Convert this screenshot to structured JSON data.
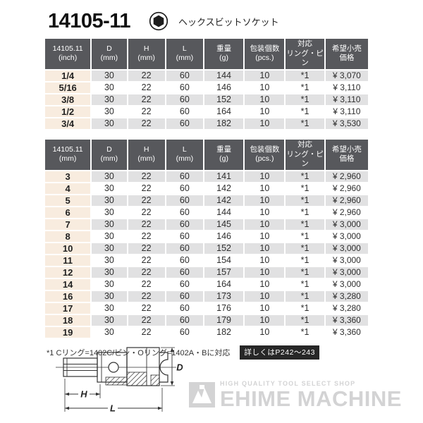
{
  "title": {
    "model": "14105-11",
    "product_name": "ヘックスビットソケット",
    "icon": "hex-socket-icon"
  },
  "tables": [
    {
      "unit": "inch",
      "columns": [
        {
          "l1": "14105.11",
          "l2": "(inch)"
        },
        {
          "l1": "D",
          "l2": "(mm)"
        },
        {
          "l1": "H",
          "l2": "(mm)"
        },
        {
          "l1": "L",
          "l2": "(mm)"
        },
        {
          "l1": "重量",
          "l2": "(g)"
        },
        {
          "l1": "包装個数",
          "l2": "(pcs.)"
        },
        {
          "l1": "対応",
          "l2": "リング・ピン"
        },
        {
          "l1": "希望小売",
          "l2": "価格"
        }
      ],
      "rows": [
        [
          "1/4",
          "30",
          "22",
          "60",
          "144",
          "10",
          "*1",
          "¥ 3,070"
        ],
        [
          "5/16",
          "30",
          "22",
          "60",
          "146",
          "10",
          "*1",
          "¥ 3,110"
        ],
        [
          "3/8",
          "30",
          "22",
          "60",
          "152",
          "10",
          "*1",
          "¥ 3,110"
        ],
        [
          "1/2",
          "30",
          "22",
          "60",
          "164",
          "10",
          "*1",
          "¥ 3,110"
        ],
        [
          "3/4",
          "30",
          "22",
          "60",
          "182",
          "10",
          "*1",
          "¥ 3,530"
        ]
      ]
    },
    {
      "unit": "mm",
      "columns": [
        {
          "l1": "14105.11",
          "l2": "(mm)"
        },
        {
          "l1": "D",
          "l2": "(mm)"
        },
        {
          "l1": "H",
          "l2": "(mm)"
        },
        {
          "l1": "L",
          "l2": "(mm)"
        },
        {
          "l1": "重量",
          "l2": "(g)"
        },
        {
          "l1": "包装個数",
          "l2": "(pcs.)"
        },
        {
          "l1": "対応",
          "l2": "リング・ピン"
        },
        {
          "l1": "希望小売",
          "l2": "価格"
        }
      ],
      "rows": [
        [
          "3",
          "30",
          "22",
          "60",
          "141",
          "10",
          "*1",
          "¥ 2,960"
        ],
        [
          "4",
          "30",
          "22",
          "60",
          "142",
          "10",
          "*1",
          "¥ 2,960"
        ],
        [
          "5",
          "30",
          "22",
          "60",
          "142",
          "10",
          "*1",
          "¥ 2,960"
        ],
        [
          "6",
          "30",
          "22",
          "60",
          "144",
          "10",
          "*1",
          "¥ 2,960"
        ],
        [
          "7",
          "30",
          "22",
          "60",
          "145",
          "10",
          "*1",
          "¥ 3,000"
        ],
        [
          "8",
          "30",
          "22",
          "60",
          "146",
          "10",
          "*1",
          "¥ 3,000"
        ],
        [
          "10",
          "30",
          "22",
          "60",
          "152",
          "10",
          "*1",
          "¥ 3,000"
        ],
        [
          "11",
          "30",
          "22",
          "60",
          "154",
          "10",
          "*1",
          "¥ 3,000"
        ],
        [
          "12",
          "30",
          "22",
          "60",
          "157",
          "10",
          "*1",
          "¥ 3,000"
        ],
        [
          "14",
          "30",
          "22",
          "60",
          "164",
          "10",
          "*1",
          "¥ 3,000"
        ],
        [
          "16",
          "30",
          "22",
          "60",
          "173",
          "10",
          "*1",
          "¥ 3,280"
        ],
        [
          "17",
          "30",
          "22",
          "60",
          "176",
          "10",
          "*1",
          "¥ 3,280"
        ],
        [
          "18",
          "30",
          "22",
          "60",
          "179",
          "10",
          "*1",
          "¥ 3,360"
        ],
        [
          "19",
          "30",
          "22",
          "60",
          "182",
          "10",
          "*1",
          "¥ 3,360"
        ]
      ]
    }
  ],
  "footnote": {
    "text": "*1 Cリング=1402C/ピン・Oリング=1402A・Bに対応",
    "badge": "詳しくはP242～243"
  },
  "diagram": {
    "dim_h": "H",
    "dim_l": "L",
    "dim_d": "D"
  },
  "watermark": {
    "tagline": "HIGH QUALITY TOOL SELECT SHOP",
    "brand": "EHIME MACHINE"
  },
  "colors": {
    "header_bg": "#57585c",
    "row_alt_bg": "#e1e1e2",
    "size_col_bg": "#f8ecdf",
    "badge_bg": "#272727",
    "watermark": "#d3d3d4"
  }
}
